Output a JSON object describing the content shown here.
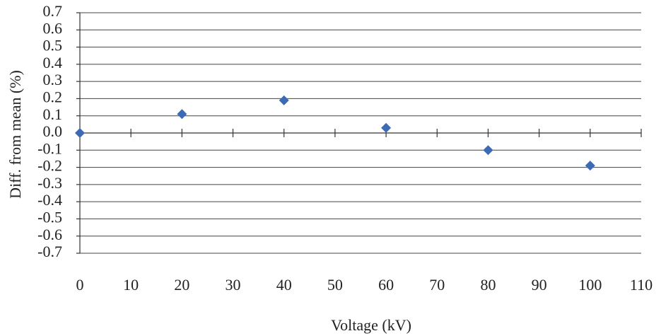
{
  "chart_data": {
    "type": "scatter",
    "x_label": "Voltage (kV)",
    "y_label": "Diff. from mean (%)",
    "series": [
      {
        "name": "Diff. from mean",
        "color": "#3d6bb3",
        "x": [
          0,
          20,
          40,
          60,
          80,
          100
        ],
        "values": [
          0,
          0.11,
          0.19,
          0.03,
          -0.1,
          -0.19
        ]
      }
    ],
    "xlim": [
      0,
      110
    ],
    "xticks": [
      0,
      10,
      20,
      30,
      40,
      50,
      60,
      70,
      80,
      90,
      100,
      110
    ],
    "ylim": [
      -0.7,
      0.7
    ],
    "yticks": [
      0.7,
      0.6,
      0.5,
      0.4,
      0.3,
      0.2,
      0.1,
      {
        "value": 0,
        "label": "0.0"
      },
      -0.1,
      -0.2,
      -0.3,
      -0.4,
      -0.5,
      -0.6,
      -0.7
    ],
    "grid": true
  }
}
